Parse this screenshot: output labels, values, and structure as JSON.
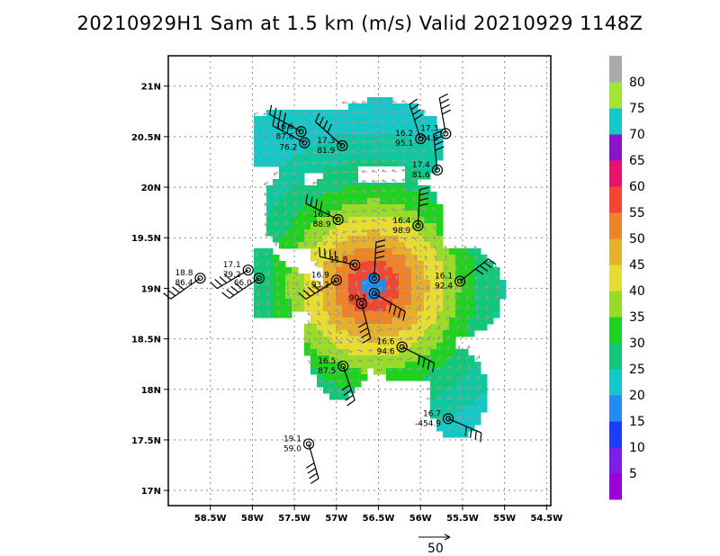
{
  "title": "20210929H1 Sam at 1.5 km (m/s) Valid 20210929  1148Z",
  "chart_data": {
    "type": "wind_analysis_map",
    "title": "20210929H1 Sam at 1.5 km (m/s) Valid 20210929  1148Z",
    "x_ticks": [
      "58.5W",
      "58W",
      "57.5W",
      "57W",
      "56.5W",
      "56W",
      "55.5W",
      "55W",
      "54.5W"
    ],
    "x_tick_values": [
      -58.5,
      -58.0,
      -57.5,
      -57.0,
      -56.5,
      -56.0,
      -55.5,
      -55.0,
      -54.5
    ],
    "y_ticks": [
      "17N",
      "17.5N",
      "18N",
      "18.5N",
      "19N",
      "19.5N",
      "20N",
      "20.5N",
      "21N"
    ],
    "y_tick_values": [
      17.0,
      17.5,
      18.0,
      18.5,
      19.0,
      19.5,
      20.0,
      20.5,
      21.0
    ],
    "xlim": [
      -59.0,
      -54.45
    ],
    "ylim": [
      16.85,
      21.3
    ],
    "grid": true,
    "center": {
      "lon": -56.6,
      "lat": 19.05
    },
    "colorbar": {
      "labels": [
        "5",
        "10",
        "15",
        "20",
        "25",
        "30",
        "35",
        "40",
        "45",
        "50",
        "55",
        "60",
        "65",
        "70",
        "75",
        "80"
      ],
      "colors": [
        "#9d00d6",
        "#7b1ee8",
        "#1e3cff",
        "#1e8cf0",
        "#14c8c8",
        "#10c878",
        "#1ed21e",
        "#96dc28",
        "#e6dc32",
        "#e6af2d",
        "#f08228",
        "#f04632",
        "#e6146e",
        "#8c14c8",
        "#14c8c8",
        "#a0e632",
        "#aaaaaa"
      ]
    },
    "vector_reference": "50",
    "observations": [
      {
        "lon": -58.62,
        "lat": 19.1,
        "top": "18.8",
        "bottom": "86.4"
      },
      {
        "lon": -58.05,
        "lat": 19.18,
        "top": "17.1",
        "bottom": "79.2"
      },
      {
        "lon": -57.92,
        "lat": 19.1,
        "top": "",
        "bottom": "66.0"
      },
      {
        "lon": -57.42,
        "lat": 20.55,
        "top": "16.6",
        "bottom": "87.6"
      },
      {
        "lon": -57.38,
        "lat": 20.44,
        "top": "",
        "bottom": "76.2"
      },
      {
        "lon": -56.93,
        "lat": 20.41,
        "top": "17.3",
        "bottom": "81.9"
      },
      {
        "lon": -56.0,
        "lat": 20.48,
        "top": "16.2",
        "bottom": "95.1"
      },
      {
        "lon": -55.7,
        "lat": 20.53,
        "top": "17.3",
        "bottom": "74.6"
      },
      {
        "lon": -55.8,
        "lat": 20.17,
        "top": "17.4",
        "bottom": "81.6"
      },
      {
        "lon": -56.98,
        "lat": 19.68,
        "top": "16.3",
        "bottom": "88.9"
      },
      {
        "lon": -56.03,
        "lat": 19.62,
        "top": "16.4",
        "bottom": "98.9"
      },
      {
        "lon": -55.53,
        "lat": 19.07,
        "top": "16.1",
        "bottom": "92.4"
      },
      {
        "lon": -56.22,
        "lat": 18.42,
        "top": "16.6",
        "bottom": "94.6"
      },
      {
        "lon": -56.92,
        "lat": 18.23,
        "top": "16.5",
        "bottom": "87.5"
      },
      {
        "lon": -55.67,
        "lat": 17.71,
        "top": "16.7",
        "bottom": "-454.9"
      },
      {
        "lon": -57.33,
        "lat": 17.46,
        "top": "19.1",
        "bottom": "59.0"
      },
      {
        "lon": -56.78,
        "lat": 19.23,
        "top": "11.8",
        "bottom": ""
      },
      {
        "lon": -57.0,
        "lat": 19.08,
        "top": "16.9",
        "bottom": "93.2"
      },
      {
        "lon": -56.55,
        "lat": 19.1,
        "top": "",
        "bottom": ""
      },
      {
        "lon": -56.55,
        "lat": 18.95,
        "top": "",
        "bottom": "90.1"
      },
      {
        "lon": -56.7,
        "lat": 18.85,
        "top": "",
        "bottom": ""
      }
    ]
  }
}
